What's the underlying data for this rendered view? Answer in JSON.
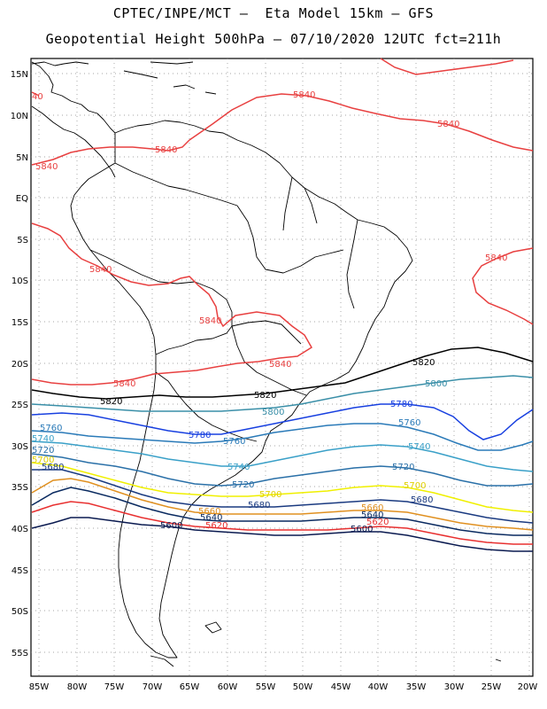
{
  "title": {
    "line1": "CPTEC/INPE/MCT –  Eta Model 15km – GFS",
    "line2": "Geopotential Height 500hPa – 07/10/2020 12UTC fct=211h"
  },
  "axes": {
    "lat_labels": [
      "15N",
      "10N",
      "5N",
      "EQ",
      "5S",
      "10S",
      "15S",
      "20S",
      "25S",
      "30S",
      "35S",
      "40S",
      "45S",
      "50S",
      "55S"
    ],
    "lon_labels": [
      "85W",
      "80W",
      "75W",
      "70W",
      "65W",
      "60W",
      "55W",
      "50W",
      "45W",
      "40W",
      "35W",
      "30W",
      "25W",
      "20W"
    ]
  },
  "colors": {
    "c5840": "#e84040",
    "c5820": "#000000",
    "c5800": "#3a8fa8",
    "c5780": "#1840e0",
    "c5760": "#2a7ab8",
    "c5740": "#3aa0c8",
    "c5720": "#2a70a8",
    "c5700": "#f0f000",
    "c5680": "#1a3a80",
    "c5660": "#e09020",
    "c5640": "#0a2a60",
    "c5620": "#e83030",
    "c5600": "#0a1a50",
    "coast": "#000000",
    "grid": "#888888"
  },
  "contours": {
    "v5840": "5840",
    "v5820": "5820",
    "v5800": "5800",
    "v5780": "5780",
    "v5760": "5760",
    "v5740": "5740",
    "v5720": "5720",
    "v5700": "5700",
    "v5680": "5680",
    "v5660": "5660",
    "v5640": "5640",
    "v5620": "5620",
    "v5600": "5600",
    "v40": "40"
  }
}
